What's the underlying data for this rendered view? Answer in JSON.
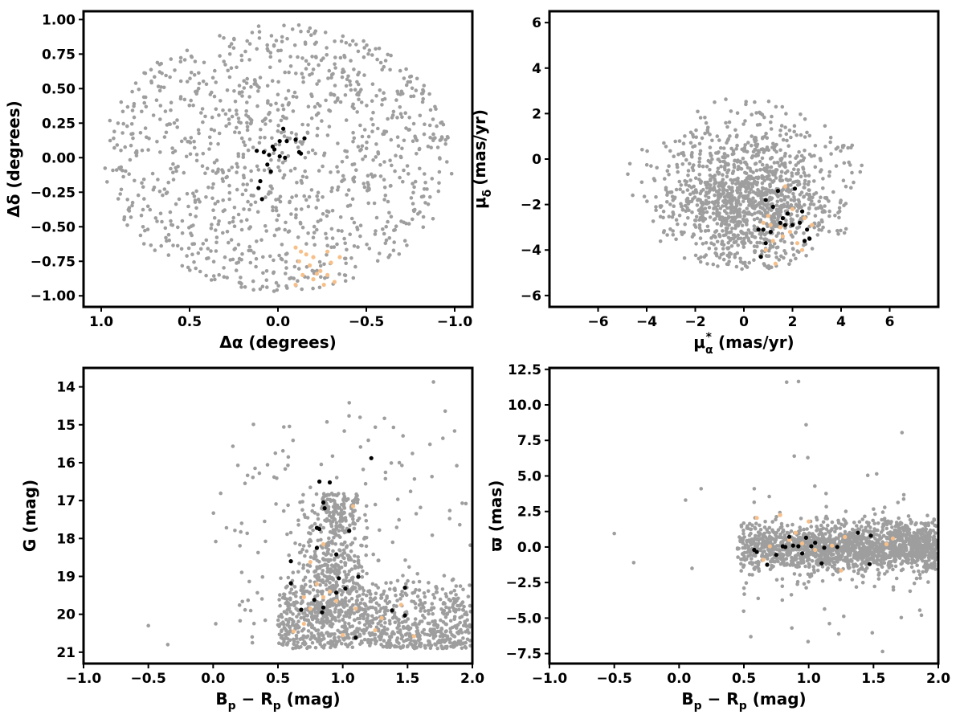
{
  "colors": {
    "field": "#9e9e9e",
    "members": "#000000",
    "group": "#f7c08a"
  },
  "chart_data": [
    {
      "type": "scatter",
      "id": "radec",
      "xlabel": "Δα (degrees)",
      "ylabel": "Δδ (degrees)",
      "xlim": [
        1.1,
        -1.1
      ],
      "ylim": [
        -1.08,
        1.06
      ],
      "xticks": [
        1.0,
        0.5,
        0.0,
        -0.5,
        -1.0
      ],
      "xtick_labels": [
        "1.0",
        "0.5",
        "0.0",
        "−0.5",
        "−1.0"
      ],
      "yticks": [
        1.0,
        0.75,
        0.5,
        0.25,
        0.0,
        -0.25,
        -0.5,
        -0.75,
        -1.0
      ],
      "ytick_labels": [
        "1.00",
        "0.75",
        "0.50",
        "0.25",
        "0.00",
        "−0.25",
        "−0.50",
        "−0.75",
        "−1.00"
      ],
      "field_distribution": "approximately uniform disk of radius ~1 degree centred at (0,0)",
      "series": [
        {
          "color": "black",
          "points": [
            [
              0.12,
              0.05
            ],
            [
              0.08,
              0.04
            ],
            [
              0.05,
              0.02
            ],
            [
              0.03,
              0.08
            ],
            [
              -0.01,
              0.12
            ],
            [
              -0.03,
              0.21
            ],
            [
              -0.05,
              0.12
            ],
            [
              -0.1,
              0.13
            ],
            [
              -0.12,
              0.04
            ],
            [
              -0.13,
              0.03
            ],
            [
              -0.15,
              0.14
            ],
            [
              0.02,
              0.06
            ],
            [
              -0.04,
              0.0
            ],
            [
              0.06,
              -0.05
            ],
            [
              0.04,
              -0.1
            ],
            [
              0.1,
              -0.17
            ],
            [
              0.11,
              -0.22
            ],
            [
              0.09,
              -0.3
            ],
            [
              -0.01,
              0.01
            ]
          ]
        },
        {
          "color": "orange",
          "points": [
            [
              -0.1,
              -0.65
            ],
            [
              -0.13,
              -0.68
            ],
            [
              -0.2,
              -0.72
            ],
            [
              -0.28,
              -0.68
            ],
            [
              -0.35,
              -0.72
            ],
            [
              -0.12,
              -0.75
            ],
            [
              -0.18,
              -0.78
            ],
            [
              -0.24,
              -0.82
            ],
            [
              -0.3,
              -0.76
            ],
            [
              -0.14,
              -0.85
            ],
            [
              -0.2,
              -0.88
            ],
            [
              -0.26,
              -0.92
            ],
            [
              -0.32,
              -0.9
            ],
            [
              -0.1,
              -0.92
            ],
            [
              -0.22,
              -0.84
            ],
            [
              -0.16,
              -0.7
            ],
            [
              -0.28,
              -0.85
            ]
          ]
        }
      ]
    },
    {
      "type": "scatter",
      "id": "pm",
      "xlabel": "μ",
      "xlabel_sub": "α",
      "xlabel_sup": "*",
      "xlabel_tail": "(mas/yr)",
      "ylabel": "μ",
      "ylabel_sub": "δ",
      "ylabel_tail": "(mas/yr)",
      "xlim": [
        -8,
        8
      ],
      "ylim": [
        -6.5,
        6.5
      ],
      "xticks": [
        -6,
        -4,
        -2,
        0,
        2,
        4,
        6
      ],
      "xtick_labels": [
        "−6",
        "−4",
        "−2",
        "0",
        "2",
        "4",
        "6"
      ],
      "yticks": [
        6,
        4,
        2,
        0,
        -2,
        -4,
        -6
      ],
      "ytick_labels": [
        "6",
        "4",
        "2",
        "0",
        "−2",
        "−4",
        "−6"
      ],
      "field_distribution": "cloud centred near (0.5,-2) spanning x -5..5, y -4.8..4.3",
      "series": [
        {
          "color": "black",
          "points": [
            [
              0.9,
              -1.8
            ],
            [
              1.2,
              -2.1
            ],
            [
              1.8,
              -2.4
            ],
            [
              2.1,
              -1.3
            ],
            [
              2.4,
              -2.3
            ],
            [
              1.6,
              -2.6
            ],
            [
              0.8,
              -3.1
            ],
            [
              1.1,
              -3.2
            ],
            [
              0.6,
              -3.1
            ],
            [
              1.5,
              -2.8
            ],
            [
              2.0,
              -2.9
            ],
            [
              2.6,
              -3.1
            ],
            [
              2.7,
              -3.5
            ],
            [
              1.4,
              -1.4
            ],
            [
              0.7,
              -4.3
            ],
            [
              2.3,
              -2.8
            ],
            [
              0.9,
              -3.7
            ],
            [
              1.7,
              -2.9
            ],
            [
              2.5,
              -3.6
            ]
          ]
        },
        {
          "color": "orange",
          "points": [
            [
              1.0,
              -2.5
            ],
            [
              1.5,
              -3.0
            ],
            [
              1.2,
              -3.6
            ],
            [
              1.9,
              -3.2
            ],
            [
              2.2,
              -3.7
            ],
            [
              1.6,
              -3.4
            ],
            [
              0.8,
              -2.8
            ],
            [
              1.3,
              -4.6
            ],
            [
              2.5,
              -2.6
            ],
            [
              1.7,
              -1.2
            ],
            [
              2.8,
              -2.9
            ],
            [
              0.9,
              -4.0
            ],
            [
              2.0,
              -2.2
            ],
            [
              1.1,
              -2.9
            ],
            [
              2.4,
              -4.0
            ]
          ]
        }
      ]
    },
    {
      "type": "scatter",
      "id": "cmd",
      "xlabel": "B",
      "xlabel_sub1": "p",
      "xlabel_mid": " − R",
      "xlabel_sub2": "p",
      "xlabel_tail": " (mag)",
      "ylabel": "G (mag)",
      "xlim": [
        -1.0,
        2.0
      ],
      "ylim": [
        21.3,
        13.5
      ],
      "xticks": [
        -1.0,
        -0.5,
        0.0,
        0.5,
        1.0,
        1.5,
        2.0
      ],
      "xtick_labels": [
        "−1.0",
        "−0.5",
        "0.0",
        "0.5",
        "1.0",
        "1.5",
        "2.0"
      ],
      "yticks": [
        21,
        20,
        19,
        18,
        17,
        16,
        15,
        14
      ],
      "ytick_labels": [
        "21",
        "20",
        "19",
        "18",
        "17",
        "16",
        "15",
        "14"
      ],
      "field_distribution": "dense at G 19-21, colour 0.5-2.0; branch toward brighter magnitudes near colour ~0.9",
      "series": [
        {
          "color": "black",
          "points": [
            [
              0.68,
              19.88
            ],
            [
              0.85,
              19.82
            ],
            [
              0.78,
              19.62
            ],
            [
              0.84,
              19.95
            ],
            [
              1.1,
              20.62
            ],
            [
              1.48,
              20.03
            ],
            [
              1.38,
              19.9
            ],
            [
              0.95,
              19.43
            ],
            [
              1.02,
              19.32
            ],
            [
              0.97,
              19.05
            ],
            [
              1.12,
              19.01
            ],
            [
              0.6,
              19.18
            ],
            [
              0.6,
              18.6
            ],
            [
              0.8,
              18.25
            ],
            [
              0.95,
              18.42
            ],
            [
              1.05,
              17.8
            ],
            [
              0.8,
              17.72
            ],
            [
              0.82,
              17.75
            ],
            [
              0.86,
              17.2
            ],
            [
              0.85,
              17.05
            ],
            [
              0.82,
              16.5
            ],
            [
              0.9,
              16.52
            ],
            [
              1.22,
              15.88
            ],
            [
              1.48,
              19.3
            ]
          ]
        },
        {
          "color": "orange",
          "points": [
            [
              0.62,
              20.45
            ],
            [
              0.7,
              20.25
            ],
            [
              1.0,
              20.55
            ],
            [
              1.25,
              20.42
            ],
            [
              1.55,
              20.58
            ],
            [
              0.75,
              19.85
            ],
            [
              0.85,
              19.55
            ],
            [
              0.95,
              19.65
            ],
            [
              1.1,
              19.85
            ],
            [
              1.45,
              19.75
            ],
            [
              0.8,
              19.2
            ],
            [
              0.75,
              18.62
            ],
            [
              0.85,
              18.15
            ],
            [
              0.9,
              19.4
            ],
            [
              1.08,
              17.15
            ],
            [
              0.7,
              19.55
            ],
            [
              1.3,
              20.1
            ]
          ]
        }
      ]
    },
    {
      "type": "scatter",
      "id": "parallax",
      "xlabel": "B",
      "xlabel_sub1": "p",
      "xlabel_mid": " − R",
      "xlabel_sub2": "p",
      "xlabel_tail": " (mag)",
      "ylabel": "ϖ (mas)",
      "xlim": [
        -1.0,
        2.0
      ],
      "ylim": [
        -8.2,
        12.6
      ],
      "xticks": [
        -1.0,
        -0.5,
        0.0,
        0.5,
        1.0,
        1.5,
        2.0
      ],
      "xtick_labels": [
        "−1.0",
        "−0.5",
        "0.0",
        "0.5",
        "1.0",
        "1.5",
        "2.0"
      ],
      "yticks": [
        12.5,
        10.0,
        7.5,
        5.0,
        2.5,
        0.0,
        -2.5,
        -5.0,
        -7.5
      ],
      "ytick_labels": [
        "12.5",
        "10.0",
        "7.5",
        "5.0",
        "2.5",
        "0.0",
        "−2.5",
        "−5.0",
        "−7.5"
      ],
      "field_distribution": "horizontal band around 0 mas, width ~±2 mas, colour 0.5-2.0 with scattered outliers",
      "series": [
        {
          "color": "black",
          "points": [
            [
              0.6,
              -0.35
            ],
            [
              0.68,
              -1.25
            ],
            [
              0.75,
              -0.55
            ],
            [
              0.8,
              0.05
            ],
            [
              0.82,
              0.0
            ],
            [
              0.85,
              0.72
            ],
            [
              0.88,
              0.1
            ],
            [
              0.92,
              0.05
            ],
            [
              0.95,
              -0.45
            ],
            [
              0.98,
              0.65
            ],
            [
              1.02,
              0.05
            ],
            [
              1.05,
              0.3
            ],
            [
              1.1,
              -1.15
            ],
            [
              1.12,
              -0.05
            ],
            [
              1.22,
              0.0
            ],
            [
              1.38,
              1.0
            ],
            [
              1.48,
              0.8
            ],
            [
              1.47,
              -1.2
            ],
            [
              0.58,
              -0.2
            ]
          ]
        },
        {
          "color": "orange",
          "points": [
            [
              0.6,
              2.05
            ],
            [
              0.7,
              0.05
            ],
            [
              0.78,
              2.25
            ],
            [
              0.85,
              0.5
            ],
            [
              0.95,
              0.25
            ],
            [
              1.0,
              1.8
            ],
            [
              1.05,
              -0.2
            ],
            [
              1.25,
              -1.65
            ],
            [
              1.28,
              0.7
            ],
            [
              1.6,
              0.2
            ],
            [
              1.65,
              0.6
            ],
            [
              1.18,
              0.1
            ],
            [
              0.9,
              1.0
            ],
            [
              0.65,
              -0.9
            ]
          ]
        }
      ]
    }
  ]
}
